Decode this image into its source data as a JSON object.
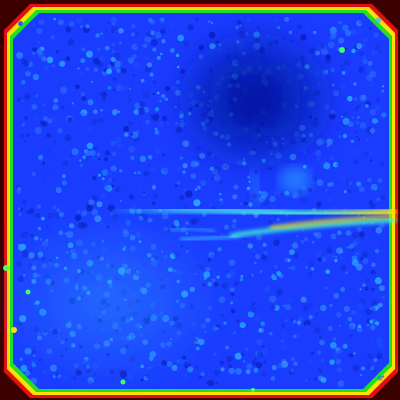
{
  "image": {
    "kind": "false-color intensity map",
    "colormap": "jet",
    "colors": {
      "outside": "#3a0000",
      "rim_red": "#e01010",
      "rim_yellow": "#ffe000",
      "rim_green": "#20e020",
      "field_blue": "#1a3cff",
      "field_dark_blue": "#0a1aa8",
      "speckle_cyan": "#2ab8ff",
      "streak_cyan": "#40f0ff",
      "streak_green": "#60ff60"
    }
  }
}
